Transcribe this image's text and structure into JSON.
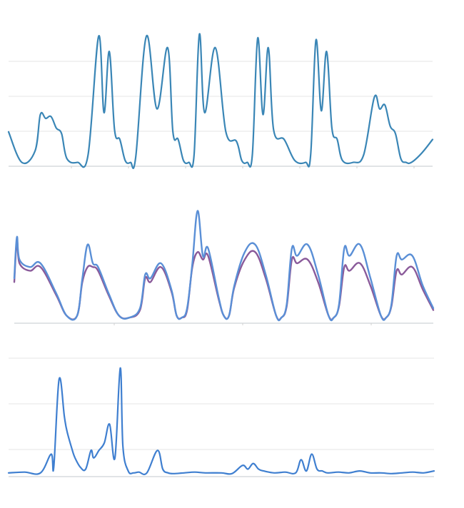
{
  "colors": {
    "background": "#ffffff",
    "grid": "#e6e6e6",
    "top_series": "#3a86b6",
    "middle_series_a": "#5a8fd6",
    "middle_series_b": "#8a5a9a",
    "bottom_series": "#3f7fd0"
  },
  "chart_data": [
    {
      "type": "line",
      "title": "",
      "xlabel": "",
      "ylabel": "",
      "x": [
        0,
        0.25,
        0.5,
        0.6,
        0.7,
        0.8,
        0.9,
        1.0,
        1.1,
        1.3,
        1.5,
        1.7,
        1.8,
        1.9,
        2.0,
        2.1,
        2.2,
        2.3,
        2.4,
        2.6,
        2.8,
        3.0,
        3.1,
        3.2,
        3.3,
        3.4,
        3.5,
        3.6,
        3.7,
        3.9,
        4.1,
        4.3,
        4.4,
        4.5,
        4.6,
        4.7,
        4.8,
        4.9,
        5.0,
        5.2,
        5.4,
        5.6,
        5.7,
        5.8,
        5.9,
        6.0,
        6.1,
        6.2,
        6.3,
        6.5,
        6.7,
        6.9,
        7.0,
        7.1,
        7.2,
        7.3,
        7.4,
        7.5,
        7.6,
        7.8,
        8.0
      ],
      "series": [
        {
          "values": [
            0.9,
            0.1,
            0.4,
            1.35,
            1.25,
            1.3,
            1.0,
            0.85,
            0.2,
            0.1,
            0.3,
            3.4,
            1.4,
            3.0,
            0.95,
            0.7,
            0.15,
            0.1,
            0.25,
            3.4,
            1.5,
            3.1,
            0.9,
            0.7,
            0.15,
            0.1,
            0.3,
            3.45,
            1.4,
            3.1,
            0.9,
            0.65,
            0.15,
            0.1,
            0.3,
            3.35,
            1.35,
            3.1,
            0.95,
            0.7,
            0.15,
            0.1,
            0.3,
            3.3,
            1.45,
            3.0,
            1.0,
            0.7,
            0.15,
            0.1,
            0.3,
            1.8,
            1.5,
            1.6,
            1.05,
            0.85,
            0.2,
            0.1,
            0.1,
            0.35,
            0.7
          ]
        }
      ],
      "ylim": [
        0,
        3.6
      ],
      "grid": true,
      "legend": "none"
    },
    {
      "type": "line",
      "title": "",
      "xlabel": "",
      "ylabel": "",
      "x": [
        0,
        0.05,
        0.1,
        0.3,
        0.5,
        0.8,
        1.0,
        1.2,
        1.3,
        1.4,
        1.5,
        1.6,
        1.8,
        2.0,
        2.2,
        2.4,
        2.5,
        2.6,
        2.8,
        3.0,
        3.1,
        3.2,
        3.3,
        3.4,
        3.5,
        3.6,
        3.7,
        3.9,
        4.0,
        4.1,
        4.2,
        4.4,
        4.6,
        4.8,
        5.0,
        5.1,
        5.2,
        5.3,
        5.4,
        5.6,
        5.8,
        6.0,
        6.1,
        6.2,
        6.3,
        6.4,
        6.6,
        6.8,
        7.0,
        7.1,
        7.2,
        7.3,
        7.4,
        7.6,
        7.8,
        8.0
      ],
      "series": [
        {
          "values": [
            1.2,
            2.3,
            1.7,
            1.5,
            1.6,
            0.8,
            0.2,
            0.2,
            1.2,
            2.1,
            1.6,
            1.5,
            0.8,
            0.2,
            0.15,
            0.4,
            1.3,
            1.2,
            1.6,
            0.9,
            0.2,
            0.15,
            0.4,
            1.6,
            3.0,
            1.8,
            2.0,
            0.7,
            0.2,
            0.2,
            1.0,
            1.9,
            2.1,
            1.3,
            0.2,
            0.15,
            0.5,
            2.0,
            1.8,
            2.1,
            1.3,
            0.2,
            0.15,
            0.5,
            2.0,
            1.8,
            2.1,
            1.2,
            0.2,
            0.15,
            0.5,
            1.8,
            1.7,
            1.8,
            1.0,
            0.4
          ]
        },
        {
          "values": [
            1.1,
            2.2,
            1.6,
            1.4,
            1.5,
            0.75,
            0.2,
            0.2,
            1.1,
            1.5,
            1.5,
            1.4,
            0.75,
            0.2,
            0.15,
            0.35,
            1.2,
            1.1,
            1.5,
            0.85,
            0.2,
            0.15,
            0.35,
            1.5,
            1.9,
            1.7,
            1.8,
            0.65,
            0.2,
            0.2,
            0.95,
            1.7,
            1.9,
            1.2,
            0.2,
            0.15,
            0.45,
            1.7,
            1.6,
            1.7,
            1.1,
            0.2,
            0.15,
            0.45,
            1.5,
            1.4,
            1.6,
            1.0,
            0.2,
            0.15,
            0.45,
            1.4,
            1.3,
            1.5,
            0.9,
            0.35
          ]
        }
      ],
      "ylim": [
        0,
        3.2
      ],
      "grid": true,
      "legend": "none"
    },
    {
      "type": "line",
      "title": "",
      "xlabel": "",
      "ylabel": "",
      "x": [
        0,
        0.3,
        0.6,
        0.8,
        0.85,
        0.95,
        1.05,
        1.1,
        1.2,
        1.25,
        1.35,
        1.45,
        1.55,
        1.6,
        1.7,
        1.8,
        1.9,
        2.0,
        2.1,
        2.15,
        2.25,
        2.35,
        2.45,
        2.6,
        2.8,
        2.9,
        3.0,
        3.1,
        3.3,
        3.5,
        3.7,
        4.0,
        4.2,
        4.4,
        4.5,
        4.6,
        4.7,
        4.8,
        5.0,
        5.2,
        5.4,
        5.5,
        5.6,
        5.7,
        5.8,
        5.9,
        6.0,
        6.2,
        6.4,
        6.6,
        6.8,
        7.0,
        7.2,
        7.4,
        7.6,
        7.8,
        8.0
      ],
      "series": [
        {
          "values": [
            0.1,
            0.12,
            0.1,
            0.6,
            0.25,
            2.6,
            1.6,
            1.2,
            0.7,
            0.5,
            0.25,
            0.2,
            0.7,
            0.5,
            0.7,
            0.9,
            1.4,
            0.5,
            2.9,
            0.8,
            0.15,
            0.1,
            0.12,
            0.1,
            0.7,
            0.2,
            0.1,
            0.08,
            0.1,
            0.12,
            0.1,
            0.1,
            0.08,
            0.3,
            0.2,
            0.35,
            0.2,
            0.15,
            0.1,
            0.12,
            0.1,
            0.45,
            0.15,
            0.6,
            0.2,
            0.15,
            0.1,
            0.12,
            0.1,
            0.15,
            0.1,
            0.1,
            0.08,
            0.1,
            0.12,
            0.1,
            0.15
          ]
        }
      ],
      "ylim": [
        0,
        3.2
      ],
      "grid": true,
      "legend": "none"
    }
  ]
}
